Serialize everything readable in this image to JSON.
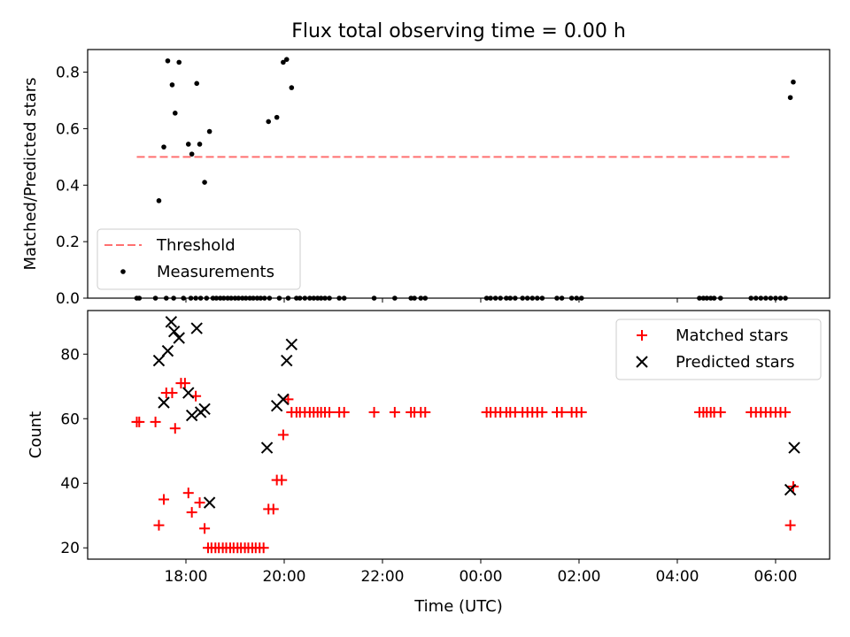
{
  "colors": {
    "threshold": "#ff7070",
    "measurements": "#000000",
    "matched": "#ff0000",
    "predicted": "#000000"
  },
  "chart_data": [
    {
      "type": "scatter",
      "title": "Flux total observing time = 0.00 h",
      "ylabel": "Matched/Predicted stars",
      "ylim": [
        0,
        0.88
      ],
      "xlim_hours": [
        16.0,
        31.1
      ],
      "yticks": [
        {
          "value": 0.0,
          "label": "0.0"
        },
        {
          "value": 0.2,
          "label": "0.2"
        },
        {
          "value": 0.4,
          "label": "0.4"
        },
        {
          "value": 0.6,
          "label": "0.6"
        },
        {
          "value": 0.8,
          "label": "0.8"
        }
      ],
      "legend": {
        "position": "lower-left",
        "entries": [
          {
            "label": "Threshold",
            "marker": "dashed-line"
          },
          {
            "label": "Measurements",
            "marker": "dot"
          }
        ]
      },
      "threshold": {
        "name": "Threshold",
        "value": 0.5,
        "x_start": 17.0,
        "x_end": 30.3
      },
      "series": [
        {
          "name": "Measurements",
          "points": [
            [
              17.45,
              0.345
            ],
            [
              17.55,
              0.535
            ],
            [
              17.63,
              0.84
            ],
            [
              17.72,
              0.755
            ],
            [
              17.78,
              0.655
            ],
            [
              17.86,
              0.835
            ],
            [
              18.05,
              0.545
            ],
            [
              18.12,
              0.51
            ],
            [
              18.22,
              0.76
            ],
            [
              18.28,
              0.545
            ],
            [
              18.38,
              0.41
            ],
            [
              18.48,
              0.59
            ],
            [
              19.68,
              0.625
            ],
            [
              19.85,
              0.64
            ],
            [
              19.98,
              0.835
            ],
            [
              20.05,
              0.845
            ],
            [
              20.15,
              0.745
            ],
            [
              30.3,
              0.71
            ],
            [
              30.36,
              0.765
            ],
            [
              17.0,
              0.0
            ],
            [
              17.05,
              0.0
            ],
            [
              17.38,
              0.0
            ],
            [
              17.6,
              0.0
            ],
            [
              17.75,
              0.0
            ],
            [
              17.95,
              0.0
            ],
            [
              18.1,
              0.0
            ],
            [
              18.2,
              0.0
            ],
            [
              18.3,
              0.0
            ],
            [
              18.42,
              0.0
            ],
            [
              18.55,
              0.0
            ],
            [
              18.62,
              0.0
            ],
            [
              18.7,
              0.0
            ],
            [
              18.77,
              0.0
            ],
            [
              18.85,
              0.0
            ],
            [
              18.92,
              0.0
            ],
            [
              19.0,
              0.0
            ],
            [
              19.07,
              0.0
            ],
            [
              19.15,
              0.0
            ],
            [
              19.22,
              0.0
            ],
            [
              19.3,
              0.0
            ],
            [
              19.37,
              0.0
            ],
            [
              19.45,
              0.0
            ],
            [
              19.52,
              0.0
            ],
            [
              19.6,
              0.0
            ],
            [
              19.7,
              0.0
            ],
            [
              19.9,
              0.0
            ],
            [
              20.08,
              0.0
            ],
            [
              20.25,
              0.0
            ],
            [
              20.32,
              0.0
            ],
            [
              20.42,
              0.0
            ],
            [
              20.52,
              0.0
            ],
            [
              20.6,
              0.0
            ],
            [
              20.68,
              0.0
            ],
            [
              20.75,
              0.0
            ],
            [
              20.83,
              0.0
            ],
            [
              20.92,
              0.0
            ],
            [
              21.12,
              0.0
            ],
            [
              21.22,
              0.0
            ],
            [
              21.83,
              0.0
            ],
            [
              22.25,
              0.0
            ],
            [
              22.58,
              0.0
            ],
            [
              22.65,
              0.0
            ],
            [
              22.78,
              0.0
            ],
            [
              22.87,
              0.0
            ],
            [
              24.12,
              0.0
            ],
            [
              24.2,
              0.0
            ],
            [
              24.3,
              0.0
            ],
            [
              24.4,
              0.0
            ],
            [
              24.52,
              0.0
            ],
            [
              24.6,
              0.0
            ],
            [
              24.7,
              0.0
            ],
            [
              24.85,
              0.0
            ],
            [
              24.95,
              0.0
            ],
            [
              25.05,
              0.0
            ],
            [
              25.15,
              0.0
            ],
            [
              25.25,
              0.0
            ],
            [
              25.55,
              0.0
            ],
            [
              25.65,
              0.0
            ],
            [
              25.85,
              0.0
            ],
            [
              25.95,
              0.0
            ],
            [
              26.05,
              0.0
            ],
            [
              28.45,
              0.0
            ],
            [
              28.53,
              0.0
            ],
            [
              28.6,
              0.0
            ],
            [
              28.68,
              0.0
            ],
            [
              28.75,
              0.0
            ],
            [
              28.88,
              0.0
            ],
            [
              29.5,
              0.0
            ],
            [
              29.6,
              0.0
            ],
            [
              29.7,
              0.0
            ],
            [
              29.8,
              0.0
            ],
            [
              29.9,
              0.0
            ],
            [
              30.0,
              0.0
            ],
            [
              30.1,
              0.0
            ],
            [
              30.2,
              0.0
            ]
          ]
        }
      ]
    },
    {
      "type": "scatter",
      "xlabel": "Time (UTC)",
      "ylabel": "Count",
      "ylim": [
        16.5,
        93.5
      ],
      "xlim_hours": [
        16.0,
        31.1
      ],
      "xticks": [
        {
          "value": 18,
          "label": "18:00"
        },
        {
          "value": 20,
          "label": "20:00"
        },
        {
          "value": 22,
          "label": "22:00"
        },
        {
          "value": 24,
          "label": "00:00"
        },
        {
          "value": 26,
          "label": "02:00"
        },
        {
          "value": 28,
          "label": "04:00"
        },
        {
          "value": 30,
          "label": "06:00"
        }
      ],
      "yticks": [
        {
          "value": 20,
          "label": "20"
        },
        {
          "value": 40,
          "label": "40"
        },
        {
          "value": 60,
          "label": "60"
        },
        {
          "value": 80,
          "label": "80"
        }
      ],
      "legend": {
        "position": "top-right",
        "entries": [
          {
            "label": "Matched stars",
            "marker": "plus"
          },
          {
            "label": "Predicted stars",
            "marker": "x"
          }
        ]
      },
      "series": [
        {
          "name": "Matched stars",
          "points": [
            [
              17.0,
              59
            ],
            [
              17.05,
              59
            ],
            [
              17.38,
              59
            ],
            [
              17.45,
              27
            ],
            [
              17.55,
              35
            ],
            [
              17.6,
              68
            ],
            [
              17.72,
              68
            ],
            [
              17.78,
              57
            ],
            [
              17.9,
              71
            ],
            [
              17.98,
              71
            ],
            [
              18.05,
              37
            ],
            [
              18.12,
              31
            ],
            [
              18.2,
              67
            ],
            [
              18.28,
              34
            ],
            [
              18.38,
              26
            ],
            [
              18.45,
              20
            ],
            [
              18.52,
              20
            ],
            [
              18.6,
              20
            ],
            [
              18.67,
              20
            ],
            [
              18.75,
              20
            ],
            [
              18.82,
              20
            ],
            [
              18.9,
              20
            ],
            [
              18.97,
              20
            ],
            [
              19.05,
              20
            ],
            [
              19.12,
              20
            ],
            [
              19.2,
              20
            ],
            [
              19.27,
              20
            ],
            [
              19.35,
              20
            ],
            [
              19.42,
              20
            ],
            [
              19.5,
              20
            ],
            [
              19.58,
              20
            ],
            [
              19.68,
              32
            ],
            [
              19.78,
              32
            ],
            [
              19.85,
              41
            ],
            [
              19.95,
              41
            ],
            [
              19.98,
              55
            ],
            [
              20.08,
              66
            ],
            [
              20.15,
              62
            ],
            [
              20.25,
              62
            ],
            [
              20.32,
              62
            ],
            [
              20.42,
              62
            ],
            [
              20.52,
              62
            ],
            [
              20.6,
              62
            ],
            [
              20.68,
              62
            ],
            [
              20.75,
              62
            ],
            [
              20.83,
              62
            ],
            [
              20.92,
              62
            ],
            [
              21.12,
              62
            ],
            [
              21.22,
              62
            ],
            [
              21.83,
              62
            ],
            [
              22.25,
              62
            ],
            [
              22.58,
              62
            ],
            [
              22.65,
              62
            ],
            [
              22.78,
              62
            ],
            [
              22.87,
              62
            ],
            [
              24.12,
              62
            ],
            [
              24.2,
              62
            ],
            [
              24.3,
              62
            ],
            [
              24.4,
              62
            ],
            [
              24.52,
              62
            ],
            [
              24.6,
              62
            ],
            [
              24.7,
              62
            ],
            [
              24.85,
              62
            ],
            [
              24.95,
              62
            ],
            [
              25.05,
              62
            ],
            [
              25.15,
              62
            ],
            [
              25.25,
              62
            ],
            [
              25.55,
              62
            ],
            [
              25.65,
              62
            ],
            [
              25.85,
              62
            ],
            [
              25.95,
              62
            ],
            [
              26.05,
              62
            ],
            [
              28.45,
              62
            ],
            [
              28.53,
              62
            ],
            [
              28.6,
              62
            ],
            [
              28.68,
              62
            ],
            [
              28.75,
              62
            ],
            [
              28.88,
              62
            ],
            [
              29.5,
              62
            ],
            [
              29.6,
              62
            ],
            [
              29.7,
              62
            ],
            [
              29.8,
              62
            ],
            [
              29.9,
              62
            ],
            [
              30.0,
              62
            ],
            [
              30.1,
              62
            ],
            [
              30.2,
              62
            ],
            [
              30.3,
              27
            ],
            [
              30.36,
              39
            ]
          ]
        },
        {
          "name": "Predicted stars",
          "points": [
            [
              17.45,
              78
            ],
            [
              17.55,
              65
            ],
            [
              17.63,
              81
            ],
            [
              17.7,
              90
            ],
            [
              17.76,
              87
            ],
            [
              17.86,
              85
            ],
            [
              18.05,
              68
            ],
            [
              18.12,
              61
            ],
            [
              18.22,
              88
            ],
            [
              18.3,
              62
            ],
            [
              18.38,
              63
            ],
            [
              18.48,
              34
            ],
            [
              19.65,
              51
            ],
            [
              19.85,
              64
            ],
            [
              19.98,
              66
            ],
            [
              20.05,
              78
            ],
            [
              20.15,
              83
            ],
            [
              30.3,
              38
            ],
            [
              30.38,
              51
            ]
          ]
        }
      ]
    }
  ]
}
